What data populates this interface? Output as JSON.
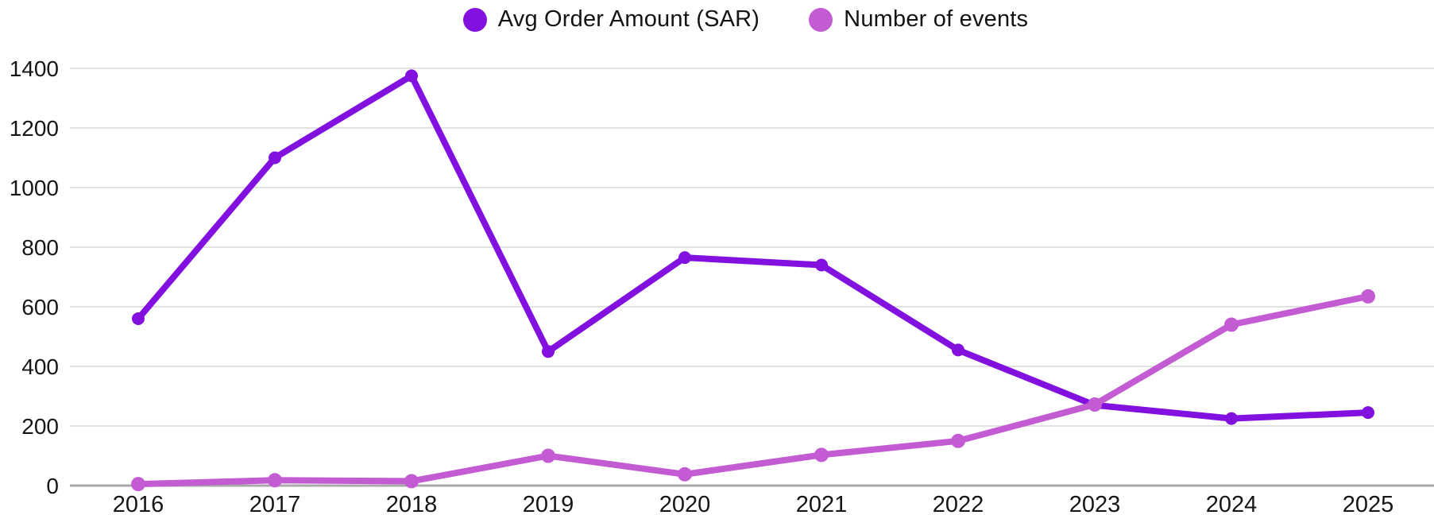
{
  "legend": {
    "items": [
      {
        "label": "Avg Order Amount (SAR)"
      },
      {
        "label": "Number of events"
      }
    ]
  },
  "colors": {
    "series1": "#8211df",
    "series2": "#c35cd3",
    "gridline": "#e2e2e2",
    "zero_axis": "#a9a9a9",
    "tick_text": "#161616",
    "background": "#ffffff"
  },
  "chart_data": {
    "type": "line",
    "title": "",
    "xlabel": "",
    "ylabel": "",
    "x": [
      "2016",
      "2017",
      "2018",
      "2019",
      "2020",
      "2021",
      "2022",
      "2023",
      "2024",
      "2025"
    ],
    "series": [
      {
        "name": "Avg Order Amount (SAR)",
        "color": "#8211df",
        "values": [
          560,
          1100,
          1375,
          450,
          765,
          740,
          455,
          270,
          225,
          245
        ]
      },
      {
        "name": "Number of events",
        "color": "#c35cd3",
        "values": [
          5,
          18,
          15,
          100,
          38,
          103,
          150,
          272,
          540,
          635
        ]
      }
    ],
    "ylim": [
      0,
      1400
    ],
    "yticks": [
      0,
      200,
      400,
      600,
      800,
      1000,
      1200,
      1400
    ],
    "grid": true,
    "legend_position": "top-center"
  }
}
